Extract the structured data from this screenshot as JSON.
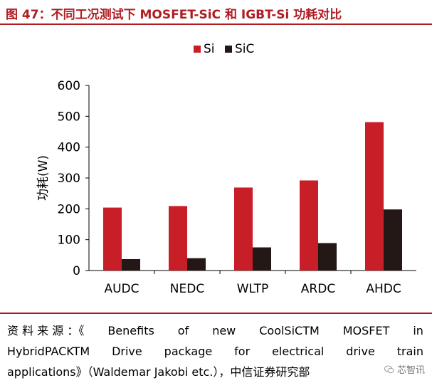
{
  "title": "图 47：不同工况测试下 MOSFET-SiC 和 IGBT-Si 功耗对比",
  "chart_data": {
    "type": "bar",
    "categories": [
      "AUDC",
      "NEDC",
      "WLTP",
      "ARDC",
      "AHDC"
    ],
    "series": [
      {
        "name": "Si",
        "values": [
          204,
          209,
          269,
          292,
          481
        ],
        "color": "#c81e28"
      },
      {
        "name": "SiC",
        "values": [
          37,
          40,
          75,
          89,
          198
        ],
        "color": "#231815"
      }
    ],
    "ylabel": "功耗(W)",
    "xlabel": "",
    "ylim": [
      0,
      600
    ],
    "yticks": [
      0,
      100,
      200,
      300,
      400,
      500,
      600
    ],
    "legend": "top-center",
    "grid": false
  },
  "source": {
    "line1_words": [
      "资 料 来 源 ：《",
      "Benefits",
      "of",
      "new",
      "CoolSiCTM",
      "MOSFET",
      "in"
    ],
    "line2_words": [
      "HybridPACKTM",
      "Drive",
      "package",
      "for",
      "electrical",
      "drive",
      "train"
    ],
    "line3": "applications》（Waldemar Jakobi etc.），中信证券研究部"
  },
  "watermark": "芯智讯"
}
